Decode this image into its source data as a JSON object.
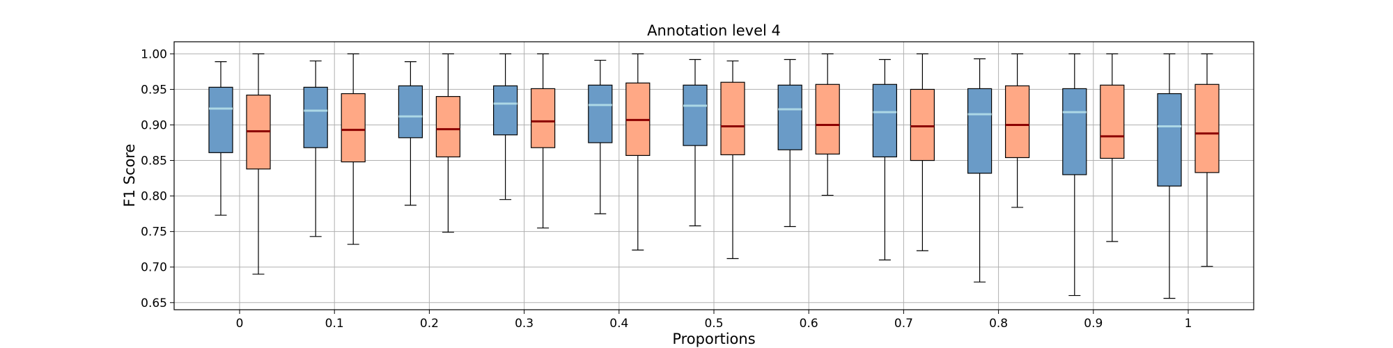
{
  "chart_data": {
    "type": "box",
    "title": "Annotation level 4",
    "xlabel": "Proportions",
    "ylabel": "F1 Score",
    "categories": [
      "0",
      "0.1",
      "0.2",
      "0.3",
      "0.4",
      "0.5",
      "0.6",
      "0.7",
      "0.8",
      "0.9",
      "1"
    ],
    "ylim": [
      0.64,
      1.017
    ],
    "yticks": [
      "0.65",
      "0.70",
      "0.75",
      "0.80",
      "0.85",
      "0.90",
      "0.95",
      "1.00"
    ],
    "grid": true,
    "colors": {
      "blue_box": "#6a9bc7",
      "blue_median": "#add8e6",
      "orange_box": "#ffa885",
      "orange_median": "#8b0000",
      "grid": "#b0b0b0"
    },
    "series": [
      {
        "boxes": [
          {
            "whislo": 0.773,
            "q1": 0.861,
            "med": 0.923,
            "q3": 0.953,
            "whishi": 0.989
          },
          {
            "whislo": 0.743,
            "q1": 0.868,
            "med": 0.92,
            "q3": 0.953,
            "whishi": 0.99
          },
          {
            "whislo": 0.787,
            "q1": 0.882,
            "med": 0.912,
            "q3": 0.955,
            "whishi": 0.989
          },
          {
            "whislo": 0.795,
            "q1": 0.886,
            "med": 0.93,
            "q3": 0.955,
            "whishi": 1.0
          },
          {
            "whislo": 0.775,
            "q1": 0.875,
            "med": 0.928,
            "q3": 0.956,
            "whishi": 0.991
          },
          {
            "whislo": 0.758,
            "q1": 0.871,
            "med": 0.927,
            "q3": 0.956,
            "whishi": 0.992
          },
          {
            "whislo": 0.757,
            "q1": 0.865,
            "med": 0.922,
            "q3": 0.956,
            "whishi": 0.992
          },
          {
            "whislo": 0.71,
            "q1": 0.855,
            "med": 0.918,
            "q3": 0.957,
            "whishi": 0.992
          },
          {
            "whislo": 0.679,
            "q1": 0.832,
            "med": 0.915,
            "q3": 0.951,
            "whishi": 0.993
          },
          {
            "whislo": 0.66,
            "q1": 0.83,
            "med": 0.918,
            "q3": 0.951,
            "whishi": 1.0
          },
          {
            "whislo": 0.656,
            "q1": 0.814,
            "med": 0.898,
            "q3": 0.944,
            "whishi": 1.0
          }
        ]
      },
      {
        "boxes": [
          {
            "whislo": 0.69,
            "q1": 0.838,
            "med": 0.891,
            "q3": 0.942,
            "whishi": 1.0
          },
          {
            "whislo": 0.732,
            "q1": 0.848,
            "med": 0.893,
            "q3": 0.944,
            "whishi": 1.0
          },
          {
            "whislo": 0.749,
            "q1": 0.855,
            "med": 0.894,
            "q3": 0.94,
            "whishi": 1.0
          },
          {
            "whislo": 0.755,
            "q1": 0.868,
            "med": 0.905,
            "q3": 0.951,
            "whishi": 1.0
          },
          {
            "whislo": 0.724,
            "q1": 0.857,
            "med": 0.907,
            "q3": 0.959,
            "whishi": 1.0
          },
          {
            "whislo": 0.712,
            "q1": 0.858,
            "med": 0.898,
            "q3": 0.96,
            "whishi": 0.99
          },
          {
            "whislo": 0.801,
            "q1": 0.859,
            "med": 0.9,
            "q3": 0.957,
            "whishi": 1.0
          },
          {
            "whislo": 0.723,
            "q1": 0.85,
            "med": 0.898,
            "q3": 0.95,
            "whishi": 1.0
          },
          {
            "whislo": 0.784,
            "q1": 0.854,
            "med": 0.9,
            "q3": 0.955,
            "whishi": 1.0
          },
          {
            "whislo": 0.736,
            "q1": 0.853,
            "med": 0.884,
            "q3": 0.956,
            "whishi": 1.0
          },
          {
            "whislo": 0.701,
            "q1": 0.833,
            "med": 0.888,
            "q3": 0.957,
            "whishi": 1.0
          }
        ]
      }
    ]
  }
}
